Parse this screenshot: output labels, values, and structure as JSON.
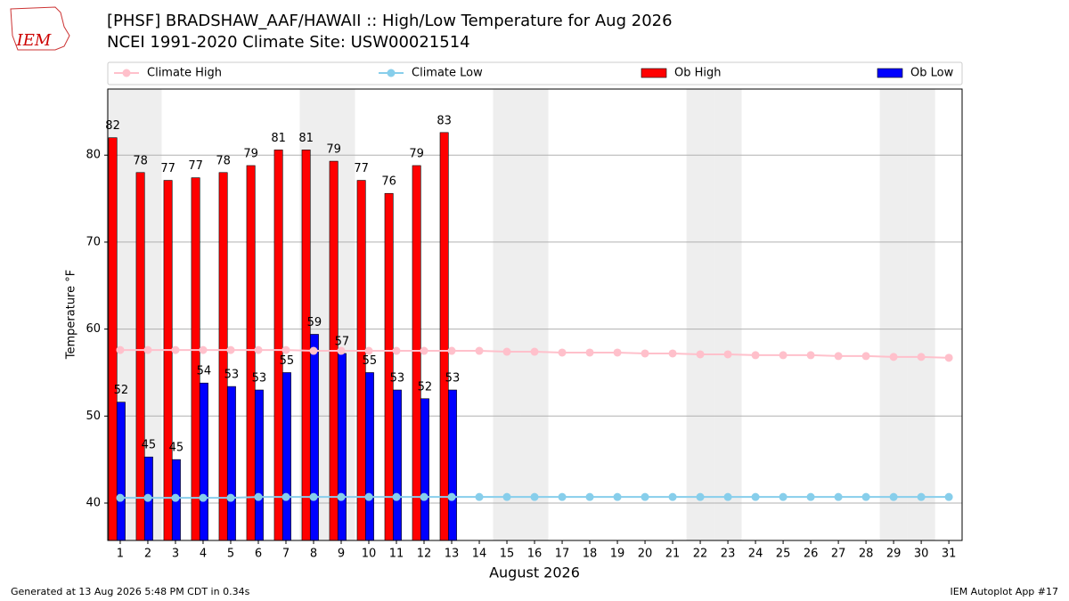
{
  "logo": "IEM",
  "footer": {
    "left": "Generated at 13 Aug 2026 5:48 PM CDT in 0.34s",
    "right": "IEM Autoplot App #17"
  },
  "chart_data": {
    "type": "bar",
    "title": "[PHSF] BRADSHAW_AAF/HAWAII :: High/Low Temperature for Aug 2026",
    "subtitle": "NCEI 1991-2020 Climate Site: USW00021514",
    "xlabel": "August 2026",
    "ylabel": "Temperature °F",
    "x": [
      1,
      2,
      3,
      4,
      5,
      6,
      7,
      8,
      9,
      10,
      11,
      12,
      13,
      14,
      15,
      16,
      17,
      18,
      19,
      20,
      21,
      22,
      23,
      24,
      25,
      26,
      27,
      28,
      29,
      30,
      31
    ],
    "xlim": [
      0.55,
      31.48
    ],
    "xticks": [
      1,
      2,
      3,
      4,
      5,
      6,
      7,
      8,
      9,
      10,
      11,
      12,
      13,
      14,
      15,
      16,
      17,
      18,
      19,
      20,
      21,
      22,
      23,
      24,
      25,
      26,
      27,
      28,
      29,
      30,
      31
    ],
    "ylim": [
      35.7,
      87.6
    ],
    "yticks": [
      40,
      50,
      60,
      70,
      80
    ],
    "grid": true,
    "weekend_days": [
      1,
      2,
      8,
      9,
      15,
      16,
      22,
      23,
      29,
      30
    ],
    "series": [
      {
        "name": "Climate High",
        "kind": "line",
        "color": "#ffc0cb",
        "values": [
          57.6,
          57.6,
          57.6,
          57.6,
          57.6,
          57.6,
          57.6,
          57.5,
          57.5,
          57.5,
          57.5,
          57.5,
          57.5,
          57.5,
          57.4,
          57.4,
          57.3,
          57.3,
          57.3,
          57.2,
          57.2,
          57.1,
          57.1,
          57.0,
          57.0,
          57.0,
          56.9,
          56.9,
          56.8,
          56.8,
          56.7
        ]
      },
      {
        "name": "Climate Low",
        "kind": "line",
        "color": "#87ceeb",
        "values": [
          40.6,
          40.6,
          40.6,
          40.6,
          40.6,
          40.7,
          40.7,
          40.7,
          40.7,
          40.7,
          40.7,
          40.7,
          40.7,
          40.7,
          40.7,
          40.7,
          40.7,
          40.7,
          40.7,
          40.7,
          40.7,
          40.7,
          40.7,
          40.7,
          40.7,
          40.7,
          40.7,
          40.7,
          40.7,
          40.7,
          40.7
        ]
      },
      {
        "name": "Ob High",
        "kind": "bar",
        "color": "#ff0000",
        "values": [
          82,
          78,
          77.1,
          77.4,
          78,
          78.8,
          80.6,
          80.6,
          79.3,
          77.1,
          75.6,
          78.8,
          82.6,
          null,
          null,
          null,
          null,
          null,
          null,
          null,
          null,
          null,
          null,
          null,
          null,
          null,
          null,
          null,
          null,
          null,
          null
        ],
        "value_labels": [
          "82",
          "78",
          "77",
          "77",
          "78",
          "79",
          "81",
          "81",
          "79",
          "77",
          "76",
          "79",
          "83",
          null,
          null,
          null,
          null,
          null,
          null,
          null,
          null,
          null,
          null,
          null,
          null,
          null,
          null,
          null,
          null,
          null,
          null
        ]
      },
      {
        "name": "Ob Low",
        "kind": "bar",
        "color": "#0000ff",
        "values": [
          51.6,
          45.3,
          45,
          53.8,
          53.4,
          53,
          55,
          59.4,
          57.2,
          55,
          53,
          52,
          53,
          null,
          null,
          null,
          null,
          null,
          null,
          null,
          null,
          null,
          null,
          null,
          null,
          null,
          null,
          null,
          null,
          null,
          null
        ],
        "value_labels": [
          "52",
          "45",
          "45",
          "54",
          "53",
          "53",
          "55",
          "59",
          "57",
          "55",
          "53",
          "52",
          "53",
          null,
          null,
          null,
          null,
          null,
          null,
          null,
          null,
          null,
          null,
          null,
          null,
          null,
          null,
          null,
          null,
          null,
          null
        ]
      }
    ]
  }
}
